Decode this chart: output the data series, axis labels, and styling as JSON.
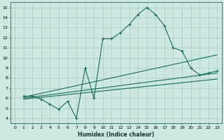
{
  "xlabel": "Humidex (Indice chaleur)",
  "bg_color": "#cce8e0",
  "line_color": "#1a6b5a",
  "grid_color": "#aacccc",
  "xlim": [
    -0.5,
    23.5
  ],
  "ylim": [
    3.5,
    15.5
  ],
  "xticks": [
    0,
    1,
    2,
    3,
    4,
    5,
    6,
    7,
    8,
    9,
    10,
    11,
    12,
    13,
    14,
    15,
    16,
    17,
    18,
    19,
    20,
    21,
    22,
    23
  ],
  "yticks": [
    4,
    5,
    6,
    7,
    8,
    9,
    10,
    11,
    12,
    13,
    14,
    15
  ],
  "lines": [
    {
      "x": [
        1,
        2,
        3,
        4,
        5,
        6,
        7,
        8,
        9,
        10,
        11,
        12,
        13,
        14,
        15,
        16,
        17,
        18,
        19,
        20,
        21,
        22,
        23
      ],
      "y": [
        6.2,
        6.2,
        5.9,
        5.4,
        4.9,
        5.7,
        4.0,
        9.0,
        6.0,
        11.9,
        11.9,
        12.5,
        13.3,
        14.3,
        15.0,
        14.3,
        13.2,
        11.0,
        10.7,
        9.0,
        8.3,
        8.5,
        8.7
      ],
      "marker": true
    },
    {
      "x": [
        1,
        23
      ],
      "y": [
        6.1,
        10.3
      ],
      "marker": false
    },
    {
      "x": [
        1,
        23
      ],
      "y": [
        6.0,
        8.5
      ],
      "marker": false
    },
    {
      "x": [
        1,
        23
      ],
      "y": [
        5.9,
        7.9
      ],
      "marker": false
    }
  ]
}
